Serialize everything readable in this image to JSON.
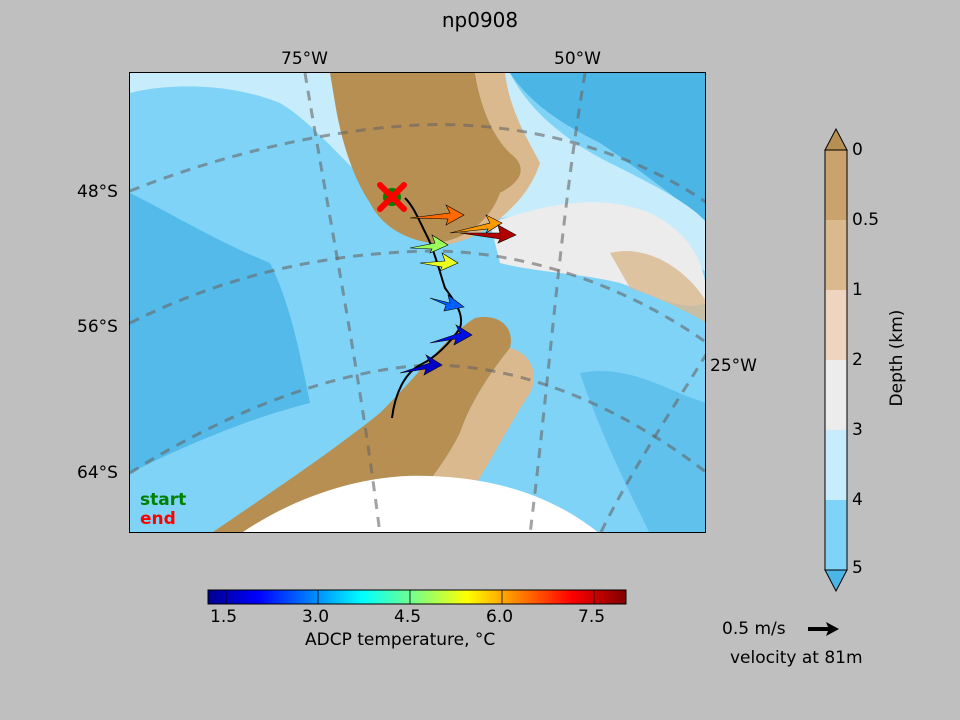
{
  "title": "np0908",
  "map": {
    "lon_labels_top": [
      "75°W",
      "50°W"
    ],
    "lon_label_right": "25°W",
    "lat_labels": [
      "48°S",
      "56°S",
      "64°S"
    ],
    "legend": {
      "start": "start",
      "end": "end"
    },
    "colors": {
      "start_marker": "#008000",
      "end_marker": "#ff0000"
    }
  },
  "depth_colorbar": {
    "label": "Depth (km)",
    "ticks": [
      "0",
      "0.5",
      "1",
      "2",
      "3",
      "4",
      "5"
    ],
    "colors": [
      "#b88f52",
      "#c9a26c",
      "#dbb98e",
      "#efd5bf",
      "#ececec",
      "#c7ecfb",
      "#7fd3f6",
      "#4bb5e6"
    ]
  },
  "temp_colorbar": {
    "label": "ADCP temperature, °C",
    "ticks": [
      "1.5",
      "3.0",
      "4.5",
      "6.0",
      "7.5"
    ],
    "range": [
      1.0,
      8.3
    ]
  },
  "velocity_key": {
    "speed": "0.5 m/s",
    "caption": "velocity at 81m"
  }
}
